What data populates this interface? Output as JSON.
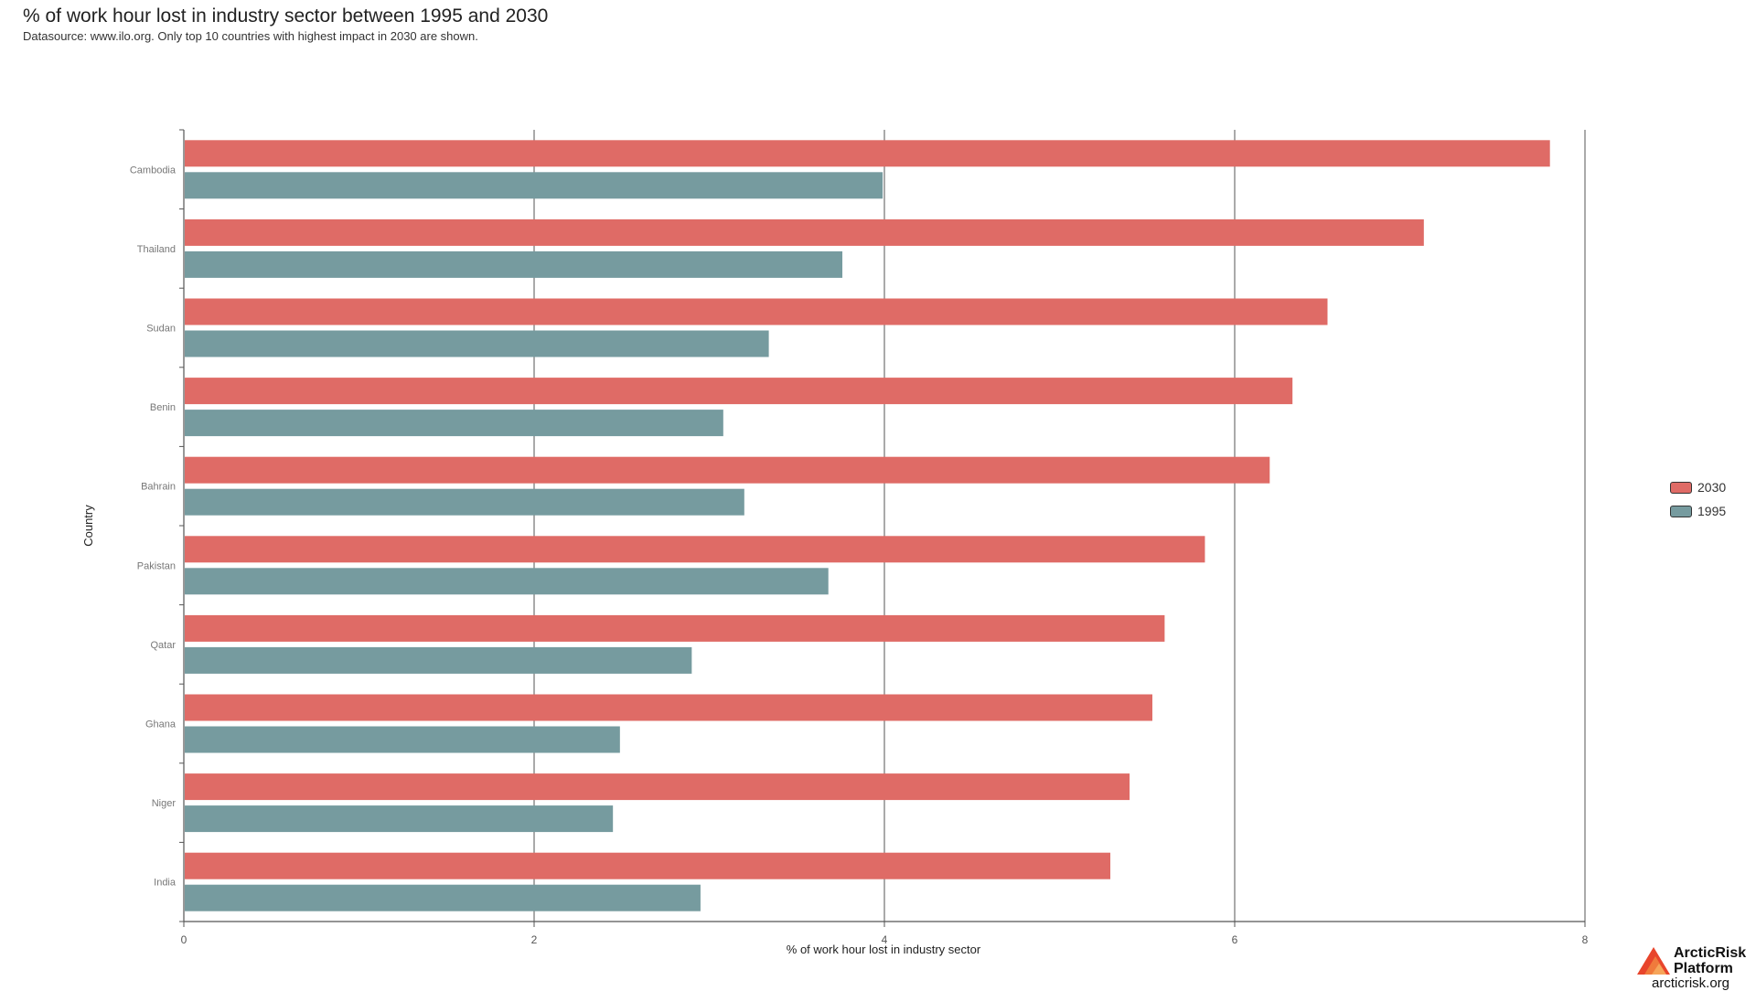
{
  "header": {
    "title": "% of work hour lost in industry sector between 1995 and 2030",
    "subtitle": "Datasource: www.ilo.org. Only top 10 countries with highest impact in 2030 are shown."
  },
  "chart_data": {
    "type": "bar",
    "orientation": "horizontal",
    "title": "% of work hour lost in industry sector between 1995 and 2030",
    "subtitle": "Datasource: www.ilo.org. Only top 10 countries with highest impact in 2030 are shown.",
    "xlabel": "% of work hour lost in industry sector",
    "ylabel": "Country",
    "xlim": [
      0,
      8
    ],
    "xticks": [
      0,
      2,
      4,
      6,
      8
    ],
    "grid": true,
    "legend_position": "right",
    "categories": [
      "Cambodia",
      "Thailand",
      "Sudan",
      "Benin",
      "Bahrain",
      "Pakistan",
      "Qatar",
      "Ghana",
      "Niger",
      "India"
    ],
    "series": [
      {
        "name": "2030",
        "color": "#df6b66",
        "values": [
          7.8,
          7.08,
          6.53,
          6.33,
          6.2,
          5.83,
          5.6,
          5.53,
          5.4,
          5.29
        ]
      },
      {
        "name": "1995",
        "color": "#769b9f",
        "values": [
          3.99,
          3.76,
          3.34,
          3.08,
          3.2,
          3.68,
          2.9,
          2.49,
          2.45,
          2.95
        ]
      }
    ]
  },
  "brand": {
    "name_line1": "ArcticRisk",
    "name_line2": "Platform",
    "url": "arcticrisk.org",
    "logo_colors": [
      "#e8452c",
      "#f07a3c",
      "#f6a55a"
    ]
  }
}
